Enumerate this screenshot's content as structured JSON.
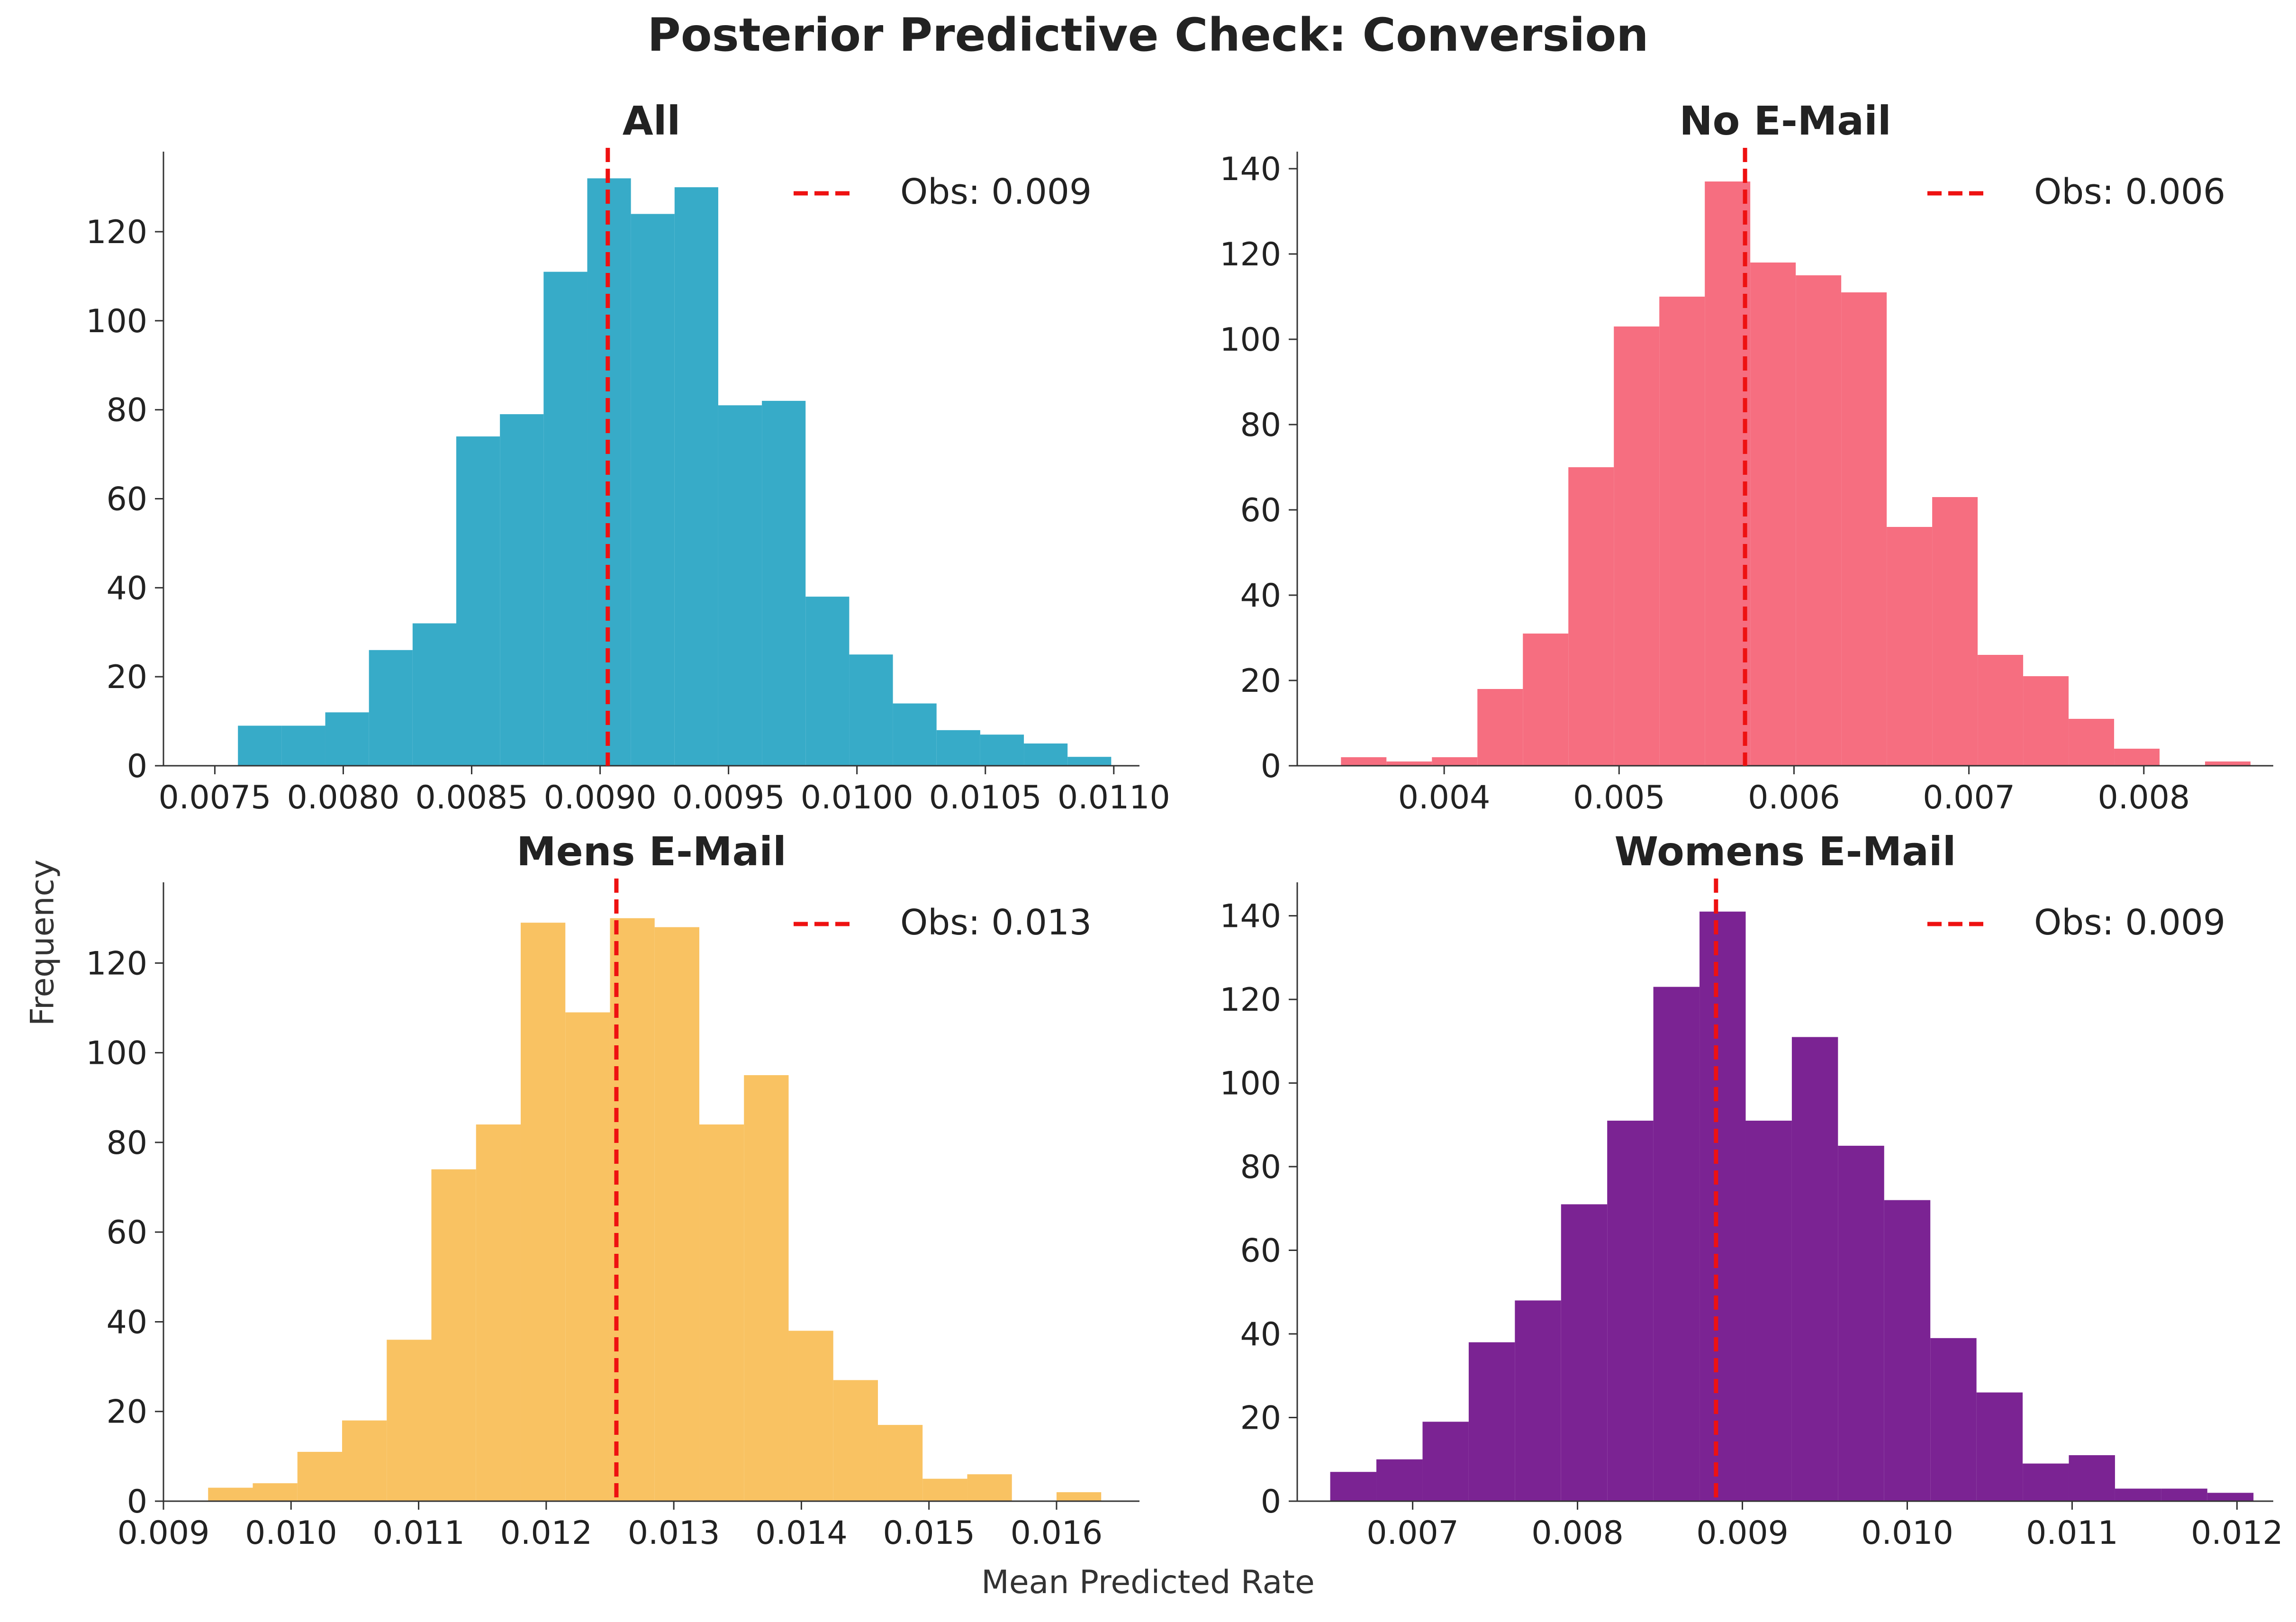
{
  "figure": {
    "title": "Posterior Predictive Check: Conversion",
    "ylabel": "Frequency",
    "xlabel": "Mean Predicted Rate",
    "observed_line_color": "#ee1111"
  },
  "chart_data": [
    {
      "type": "bar",
      "title": "All",
      "color": "#37abc8",
      "xlim": [
        0.0073,
        0.0111
      ],
      "ylim": [
        0,
        138
      ],
      "xticks": [
        0.0075,
        0.008,
        0.0085,
        0.009,
        0.0095,
        0.01,
        0.0105,
        0.011
      ],
      "xtick_labels": [
        "0.0075",
        "0.0080",
        "0.0085",
        "0.0090",
        "0.0095",
        "0.0100",
        "0.0105",
        "0.0110"
      ],
      "yticks": [
        0,
        20,
        40,
        60,
        80,
        100,
        120
      ],
      "bin_edges": [
        0.00759,
        0.00776,
        0.00793,
        0.0081,
        0.00827,
        0.00844,
        0.00861,
        0.00878,
        0.00895,
        0.00912,
        0.00929,
        0.00946,
        0.00963,
        0.0098,
        0.00997,
        0.01014,
        0.01031,
        0.01048,
        0.01065,
        0.01082,
        0.01099
      ],
      "counts": [
        9,
        9,
        12,
        26,
        32,
        74,
        79,
        111,
        132,
        124,
        130,
        81,
        82,
        38,
        25,
        14,
        8,
        7,
        5,
        2
      ],
      "observed": 0.00903,
      "legend": "Obs: 0.009",
      "legend_position": "upper-right"
    },
    {
      "type": "bar",
      "title": "No E-Mail",
      "color": "#f66e80",
      "xlim": [
        0.00316,
        0.00874
      ],
      "ylim": [
        0,
        144
      ],
      "xticks": [
        0.004,
        0.005,
        0.006,
        0.007,
        0.008
      ],
      "xtick_labels": [
        "0.004",
        "0.005",
        "0.006",
        "0.007",
        "0.008"
      ],
      "yticks": [
        0,
        20,
        40,
        60,
        80,
        100,
        120,
        140
      ],
      "bin_edges": [
        0.00341,
        0.00367,
        0.00393,
        0.00419,
        0.00445,
        0.00471,
        0.00497,
        0.00523,
        0.00549,
        0.00575,
        0.00601,
        0.00627,
        0.00653,
        0.00679,
        0.00705,
        0.00731,
        0.00757,
        0.00783,
        0.00809,
        0.00835,
        0.00861
      ],
      "counts": [
        2,
        1,
        2,
        18,
        31,
        70,
        103,
        110,
        137,
        118,
        115,
        111,
        56,
        63,
        26,
        21,
        11,
        4,
        0,
        1
      ],
      "observed": 0.00572,
      "legend": "Obs: 0.006",
      "legend_position": "upper-right"
    },
    {
      "type": "bar",
      "title": "Mens E-Mail",
      "color": "#f9c262",
      "xlim": [
        0.009,
        0.01665
      ],
      "ylim": [
        0,
        138
      ],
      "xticks": [
        0.009,
        0.01,
        0.011,
        0.012,
        0.013,
        0.014,
        0.015,
        0.016
      ],
      "xtick_labels": [
        "0.009",
        "0.010",
        "0.011",
        "0.012",
        "0.013",
        "0.014",
        "0.015",
        "0.016"
      ],
      "yticks": [
        0,
        20,
        40,
        60,
        80,
        100,
        120
      ],
      "bin_edges": [
        0.00935,
        0.0097,
        0.01005,
        0.0104,
        0.01075,
        0.0111,
        0.01145,
        0.0118,
        0.01215,
        0.0125,
        0.01285,
        0.0132,
        0.01355,
        0.0139,
        0.01425,
        0.0146,
        0.01495,
        0.0153,
        0.01565,
        0.016,
        0.01635
      ],
      "counts": [
        3,
        4,
        11,
        18,
        36,
        74,
        84,
        129,
        109,
        130,
        128,
        84,
        95,
        38,
        27,
        17,
        5,
        6,
        0,
        2
      ],
      "observed": 0.01255,
      "legend": "Obs: 0.013",
      "legend_position": "upper-right"
    },
    {
      "type": "bar",
      "title": "Womens E-Mail",
      "color": "#7b2393",
      "xlim": [
        0.0063,
        0.01222
      ],
      "ylim": [
        0,
        148
      ],
      "xticks": [
        0.007,
        0.008,
        0.009,
        0.01,
        0.011,
        0.012
      ],
      "xtick_labels": [
        "0.007",
        "0.008",
        "0.009",
        "0.010",
        "0.011",
        "0.012"
      ],
      "yticks": [
        0,
        20,
        40,
        60,
        80,
        100,
        120,
        140
      ],
      "bin_edges": [
        0.0065,
        0.00678,
        0.00706,
        0.00734,
        0.00762,
        0.0079,
        0.00818,
        0.00846,
        0.00874,
        0.00902,
        0.0093,
        0.00958,
        0.00986,
        0.01014,
        0.01042,
        0.0107,
        0.01098,
        0.01126,
        0.01154,
        0.01182,
        0.0121
      ],
      "counts": [
        7,
        10,
        19,
        38,
        48,
        71,
        91,
        123,
        141,
        91,
        111,
        85,
        72,
        39,
        26,
        9,
        11,
        3,
        3,
        2
      ],
      "observed": 0.00884,
      "legend": "Obs: 0.009",
      "legend_position": "upper-right"
    }
  ]
}
